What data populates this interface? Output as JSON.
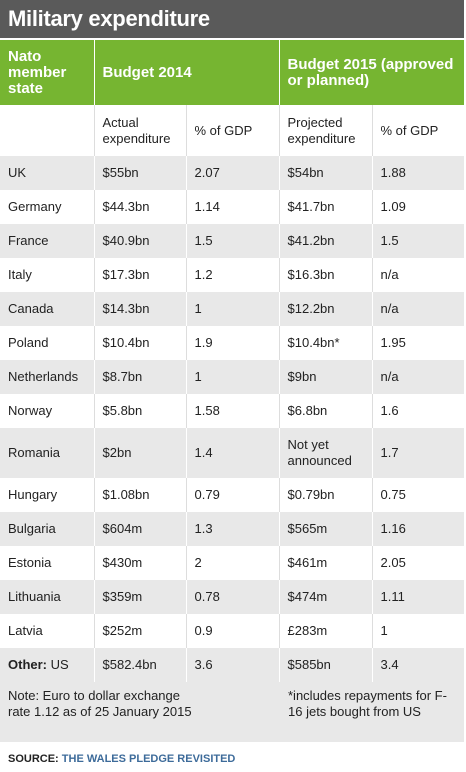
{
  "title": "Military expenditure",
  "header": {
    "col1": "Nato member state",
    "col2": "Budget 2014",
    "col3": "Budget 2015 (approved or planned)"
  },
  "subheader": {
    "actual": "Actual expenditure",
    "gdp_2014": "% of GDP",
    "projected": "Projected expenditure",
    "gdp_2015": "% of GDP"
  },
  "rows": [
    {
      "state": "UK",
      "exp2014": "$55bn",
      "gdp2014": "2.07",
      "exp2015": "$54bn",
      "gdp2015": "1.88"
    },
    {
      "state": "Germany",
      "exp2014": "$44.3bn",
      "gdp2014": "1.14",
      "exp2015": "$41.7bn",
      "gdp2015": "1.09"
    },
    {
      "state": "France",
      "exp2014": "$40.9bn",
      "gdp2014": "1.5",
      "exp2015": "$41.2bn",
      "gdp2015": "1.5"
    },
    {
      "state": "Italy",
      "exp2014": "$17.3bn",
      "gdp2014": "1.2",
      "exp2015": "$16.3bn",
      "gdp2015": "n/a"
    },
    {
      "state": "Canada",
      "exp2014": "$14.3bn",
      "gdp2014": "1",
      "exp2015": "$12.2bn",
      "gdp2015": "n/a"
    },
    {
      "state": "Poland",
      "exp2014": "$10.4bn",
      "gdp2014": "1.9",
      "exp2015": "$10.4bn*",
      "gdp2015": "1.95"
    },
    {
      "state": "Netherlands",
      "exp2014": "$8.7bn",
      "gdp2014": "1",
      "exp2015": "$9bn",
      "gdp2015": "n/a"
    },
    {
      "state": "Norway",
      "exp2014": "$5.8bn",
      "gdp2014": "1.58",
      "exp2015": "$6.8bn",
      "gdp2015": "1.6"
    },
    {
      "state": "Romania",
      "exp2014": "$2bn",
      "gdp2014": "1.4",
      "exp2015": "Not yet announced",
      "gdp2015": "1.7"
    },
    {
      "state": "Hungary",
      "exp2014": "$1.08bn",
      "gdp2014": "0.79",
      "exp2015": "$0.79bn",
      "gdp2015": "0.75"
    },
    {
      "state": "Bulgaria",
      "exp2014": "$604m",
      "gdp2014": "1.3",
      "exp2015": "$565m",
      "gdp2015": "1.16"
    },
    {
      "state": "Estonia",
      "exp2014": "$430m",
      "gdp2014": "2",
      "exp2015": "$461m",
      "gdp2015": "2.05"
    },
    {
      "state": "Lithuania",
      "exp2014": "$359m",
      "gdp2014": "0.78",
      "exp2015": "$474m",
      "gdp2015": "1.11"
    },
    {
      "state": "Latvia",
      "exp2014": "$252m",
      "gdp2014": "0.9",
      "exp2015": "£283m",
      "gdp2015": "1"
    }
  ],
  "other": {
    "label": "Other:",
    "state": "US",
    "exp2014": "$582.4bn",
    "gdp2014": "3.6",
    "exp2015": "$585bn",
    "gdp2015": "3.4"
  },
  "notes": {
    "left": "Note: Euro to dollar exchange rate 1.12 as of 25 January 2015",
    "right": "*includes repayments for F-16 jets bought from US"
  },
  "source": {
    "label": "SOURCE:",
    "link": "THE WALES PLEDGE REVISITED"
  },
  "colors": {
    "header_green": "#76b531",
    "title_gray": "#5a5a5a",
    "row_shade": "#e8e8e8",
    "link_blue": "#3d6b9a"
  }
}
